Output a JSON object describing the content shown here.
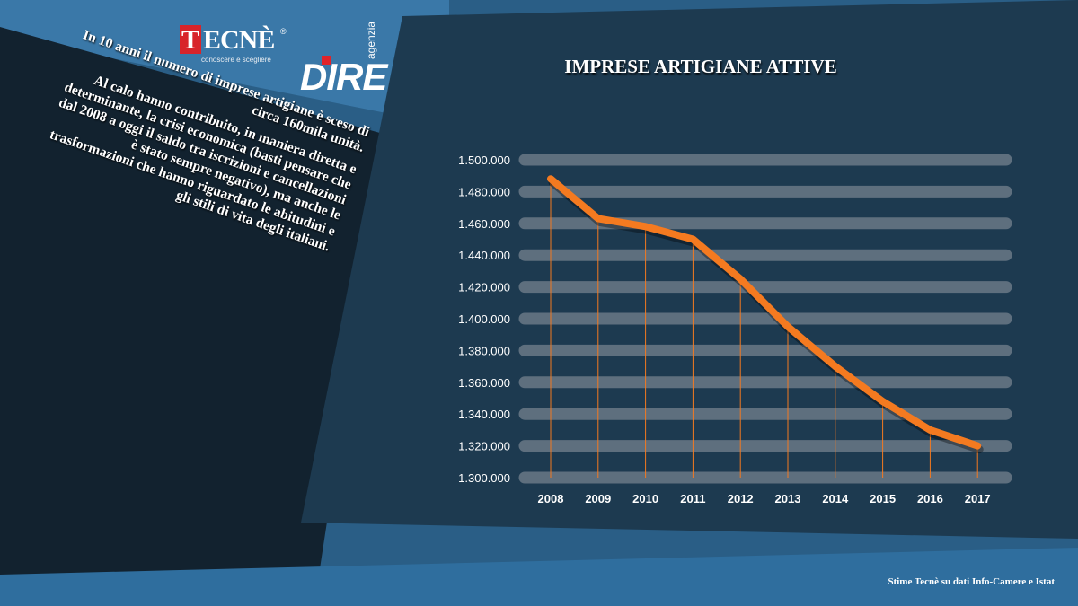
{
  "logos": {
    "tecne": {
      "mark": "T",
      "word": "ECNÈ",
      "registered": "®",
      "tagline": "conoscere e scegliere"
    },
    "dire": {
      "word": "DIRE",
      "agenzia": "agenzia"
    }
  },
  "left_text": {
    "p1": "In 10 anni il numero di imprese artigiane è sceso di circa 160mila unità.",
    "p2": "Al calo hanno contribuito, in maniera diretta e determinante, la crisi economica (basti pensare che dal 2008 a oggi il saldo tra iscrizioni e cancellazioni è stato sempre negativo), ma anche le trasformazioni che hanno riguardato le abitudini e gli stili di vita degli italiani."
  },
  "source_note": "Stime Tecnè su dati Info-Camere e Istat",
  "colors": {
    "line": "#f47a20",
    "band": "#5e6f7e",
    "panel": "#1d3a50",
    "dark_panel": "#12222f"
  },
  "chart_data": {
    "type": "line",
    "title": "IMPRESE ARTIGIANE ATTIVE",
    "xlabel": "",
    "ylabel": "",
    "categories": [
      "2008",
      "2009",
      "2010",
      "2011",
      "2012",
      "2013",
      "2014",
      "2015",
      "2016",
      "2017"
    ],
    "values": [
      1488000,
      1463000,
      1458000,
      1450000,
      1425000,
      1395000,
      1370000,
      1348000,
      1330000,
      1320000
    ],
    "ylim": [
      1300000,
      1500000
    ],
    "yticks": [
      "1.300.000",
      "1.320.000",
      "1.340.000",
      "1.360.000",
      "1.380.000",
      "1.400.000",
      "1.420.000",
      "1.440.000",
      "1.460.000",
      "1.480.000",
      "1.500.000"
    ],
    "grid": true,
    "legend": "none"
  }
}
